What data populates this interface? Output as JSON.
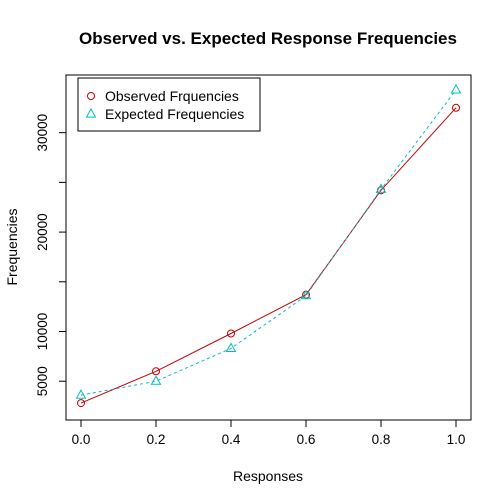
{
  "chart_data": {
    "type": "line",
    "title": "Observed vs. Expected Response Frequencies",
    "xlabel": "Responses",
    "ylabel": "Frequencies",
    "x": [
      0.0,
      0.2,
      0.4,
      0.6,
      0.8,
      1.0
    ],
    "x_ticks": [
      "0.0",
      "0.2",
      "0.4",
      "0.6",
      "0.8",
      "1.0"
    ],
    "x_tick_values": [
      0.0,
      0.2,
      0.4,
      0.6,
      0.8,
      1.0
    ],
    "y_ticks": [
      "5000",
      "10000",
      "20000",
      "30000"
    ],
    "y_tick_values": [
      5000,
      10000,
      20000,
      30000
    ],
    "y_minor_tick_values": [
      15000,
      25000
    ],
    "xlim": [
      -0.04,
      1.04
    ],
    "ylim": [
      1100,
      35800
    ],
    "legend_position": "top-left",
    "series": [
      {
        "name": "Observed Frquencies",
        "values": [
          2800,
          6000,
          9800,
          13700,
          24200,
          32500
        ],
        "color": "#cc0000",
        "marker": "circle",
        "line_style": "solid"
      },
      {
        "name": "Expected Frequencies",
        "values": [
          3600,
          5000,
          8300,
          13600,
          24300,
          34300
        ],
        "color": "#00bfc4",
        "marker": "triangle",
        "line_style": "dashed"
      }
    ]
  }
}
